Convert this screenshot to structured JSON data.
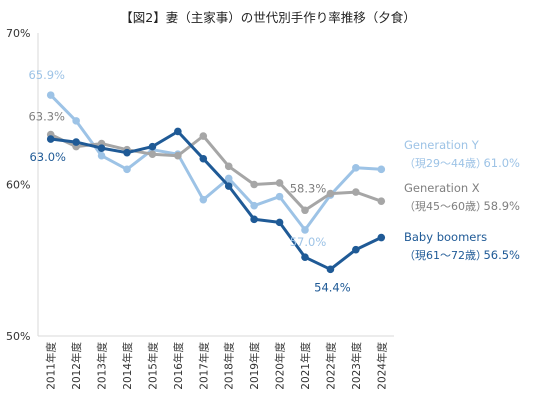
{
  "chart_data": {
    "type": "line",
    "title": "【図2】妻（主家事）の世代別手作り率推移（夕食）",
    "xlabel": "",
    "ylabel": "",
    "ylim": [
      50,
      70
    ],
    "y_ticks": [
      "70%",
      "60%",
      "50%"
    ],
    "y_tick_values": [
      70,
      60,
      50
    ],
    "categories": [
      "2011年度",
      "2012年度",
      "2013年度",
      "2014年度",
      "2015年度",
      "2016年度",
      "2017年度",
      "2018年度",
      "2019年度",
      "2020年度",
      "2021年度",
      "2022年度",
      "2023年度",
      "2024年度"
    ],
    "grid": false,
    "legend_placement": "right",
    "series": [
      {
        "name": "Generation Y",
        "legend_sub": "（現29～44歳）",
        "legend_value": "61.0%",
        "color": "#9DC3E6",
        "values": [
          65.9,
          64.2,
          61.9,
          61.0,
          62.3,
          62.0,
          59.0,
          60.4,
          58.6,
          59.2,
          57.0,
          59.3,
          61.1,
          61.0
        ]
      },
      {
        "name": "Generation X",
        "legend_sub": "（現45～60歳）",
        "legend_value": "58.9%",
        "color": "#A6A6A6",
        "values": [
          63.3,
          62.5,
          62.7,
          62.3,
          62.0,
          61.9,
          63.2,
          61.2,
          60.0,
          60.1,
          58.3,
          59.4,
          59.5,
          58.9
        ]
      },
      {
        "name": "Baby boomers",
        "legend_sub": "（現61～72歳）",
        "legend_value": "56.5%",
        "color": "#1F5A96",
        "values": [
          63.0,
          62.8,
          62.4,
          62.1,
          62.5,
          63.5,
          61.7,
          59.9,
          57.7,
          57.5,
          55.2,
          54.4,
          55.7,
          56.5
        ]
      }
    ],
    "annotations": [
      {
        "text": "65.9%",
        "series": 0,
        "index": 0,
        "color": "#9DC3E6"
      },
      {
        "text": "63.3%",
        "series": 1,
        "index": 0,
        "color": "#7F7F7F"
      },
      {
        "text": "63.0%",
        "series": 2,
        "index": 0,
        "color": "#1F5A96"
      },
      {
        "text": "58.3%",
        "series": 1,
        "index": 10,
        "color": "#7F7F7F"
      },
      {
        "text": "57.0%",
        "series": 0,
        "index": 10,
        "color": "#9DC3E6"
      },
      {
        "text": "54.4%",
        "series": 2,
        "index": 11,
        "color": "#1F5A96"
      }
    ]
  }
}
